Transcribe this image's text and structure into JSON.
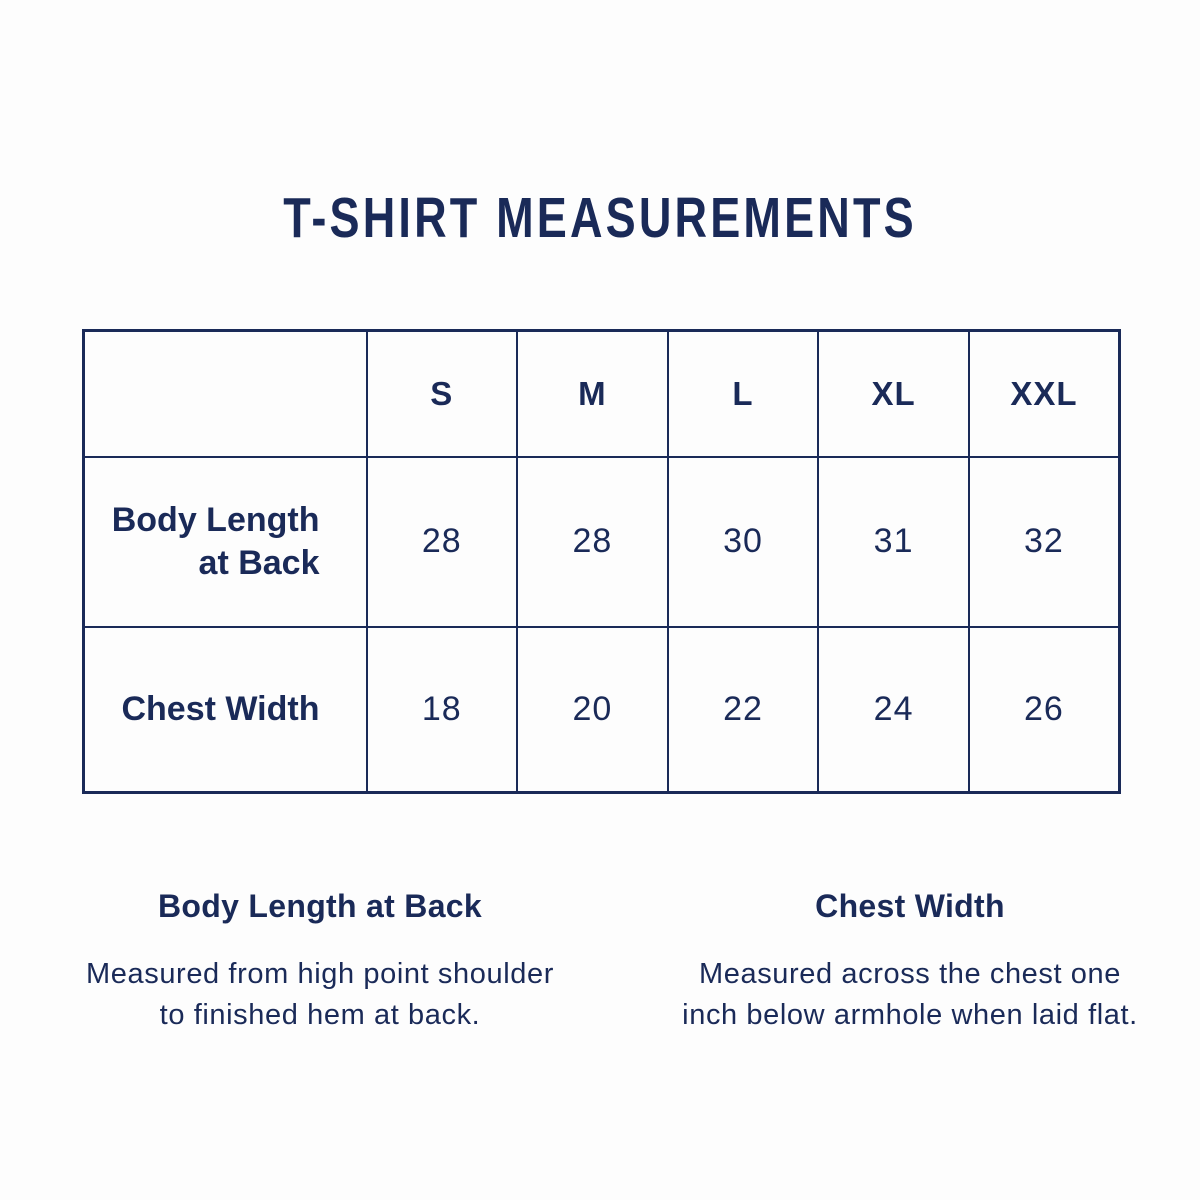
{
  "theme": {
    "navy": "#1a2a58",
    "bg": "#fdfdfd"
  },
  "title": "T-SHIRT MEASUREMENTS",
  "size_chart": {
    "column_headers": [
      "S",
      "M",
      "L",
      "XL",
      "XXL"
    ],
    "rows": [
      {
        "label": "Body Length at Back",
        "label_lines": [
          "Body Length",
          "at Back"
        ],
        "values": [
          "28",
          "28",
          "30",
          "31",
          "32"
        ]
      },
      {
        "label": "Chest Width",
        "label_lines": [
          "Chest Width"
        ],
        "values": [
          "18",
          "20",
          "22",
          "24",
          "26"
        ]
      }
    ]
  },
  "definitions": [
    {
      "term": "Body Length at Back",
      "description_lines": [
        "Measured from high point shoulder",
        "to finished hem at back."
      ]
    },
    {
      "term": "Chest Width",
      "description_lines": [
        "Measured across the chest one",
        "inch below armhole when laid flat."
      ]
    }
  ],
  "chart_data": {
    "type": "table",
    "title": "T-SHIRT MEASUREMENTS",
    "columns": [
      "",
      "S",
      "M",
      "L",
      "XL",
      "XXL"
    ],
    "rows": [
      {
        "label": "Body Length at Back",
        "values": [
          28,
          28,
          30,
          31,
          32
        ]
      },
      {
        "label": "Chest Width",
        "values": [
          18,
          20,
          22,
          24,
          26
        ]
      }
    ],
    "notes": [
      "Body Length at Back: Measured from high point shoulder to finished hem at back.",
      "Chest Width: Measured across the chest one inch below armhole when laid flat."
    ]
  }
}
